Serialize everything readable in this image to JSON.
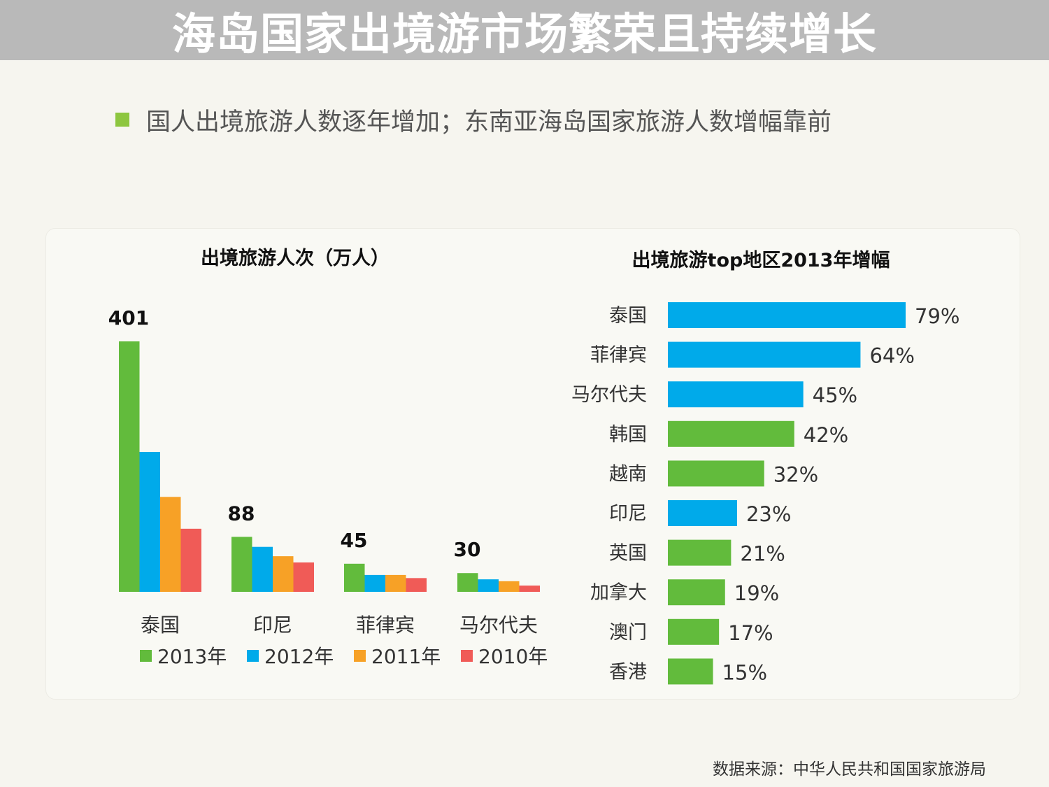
{
  "page": {
    "title": "海岛国家出境游市场繁荣且持续增长",
    "subtitle": "国人出境旅游人数逐年增加；东南亚海岛国家旅游人数增幅靠前",
    "bullet_color": "#8dc63f",
    "source": "数据来源：中华人民共和国国家旅游局"
  },
  "chart_data": [
    {
      "type": "bar",
      "title": "出境旅游人次（万人）",
      "categories": [
        "泰国",
        "印尼",
        "菲律宾",
        "马尔代夫"
      ],
      "series": [
        {
          "name": "2013年",
          "color": "#62bb3c",
          "values": [
            401,
            88,
            45,
            30
          ]
        },
        {
          "name": "2012年",
          "color": "#00aaea",
          "values": [
            224,
            72,
            27,
            20
          ]
        },
        {
          "name": "2011年",
          "color": "#f7a126",
          "values": [
            152,
            57,
            27,
            17
          ]
        },
        {
          "name": "2010年",
          "color": "#f05b57",
          "values": [
            101,
            47,
            22,
            10
          ]
        }
      ],
      "data_labels": [
        "401",
        "88",
        "45",
        "30"
      ],
      "ylim": [
        0,
        401
      ],
      "legend": "bottom"
    },
    {
      "type": "bar",
      "orientation": "horizontal",
      "title": "出境旅游top地区2013年增幅",
      "categories": [
        "泰国",
        "菲律宾",
        "马尔代夫",
        "韩国",
        "越南",
        "印尼",
        "英国",
        "加拿大",
        "澳门",
        "香港"
      ],
      "values": [
        79,
        64,
        45,
        42,
        32,
        23,
        21,
        19,
        17,
        15
      ],
      "labels": [
        "79%",
        "64%",
        "45%",
        "42%",
        "32%",
        "23%",
        "21%",
        "19%",
        "17%",
        "15%"
      ],
      "colors": [
        "#00aaea",
        "#00aaea",
        "#00aaea",
        "#62bb3c",
        "#62bb3c",
        "#00aaea",
        "#62bb3c",
        "#62bb3c",
        "#62bb3c",
        "#62bb3c"
      ],
      "xlim": [
        0,
        79
      ],
      "unit": "%"
    }
  ]
}
